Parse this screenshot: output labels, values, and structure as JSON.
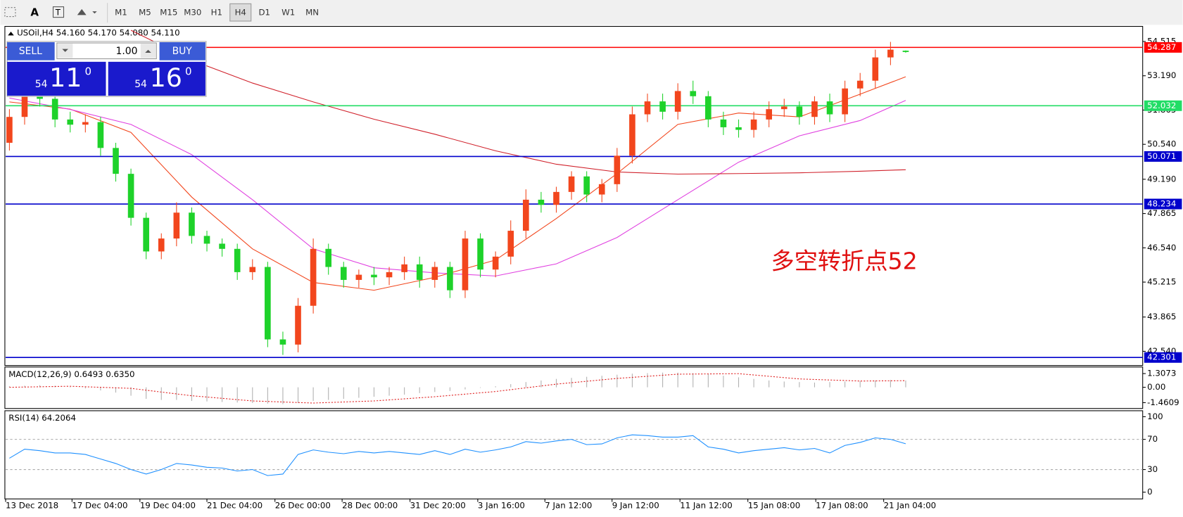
{
  "toolbar": {
    "timeframes": [
      "M1",
      "M5",
      "M15",
      "M30",
      "H1",
      "H4",
      "D1",
      "W1",
      "MN"
    ]
  },
  "trade_panel": {
    "sell": "SELL",
    "lot": "1.00",
    "buy": "BUY",
    "sell_price": {
      "prefix": "54",
      "big": "11",
      "sup": "0"
    },
    "buy_price": {
      "prefix": "54",
      "big": "16",
      "sup": "0"
    }
  },
  "chart_data": [
    {
      "type": "candlestick",
      "title": "USOil,H4 54.160 54.170 54.080 54.110",
      "annotation": "多空转折点52",
      "up_color": "#f2461d",
      "down_color": "#1ed22a",
      "open": [
        50.6,
        51.6,
        52.4,
        52.3,
        51.5,
        51.3,
        51.4,
        50.4,
        49.4,
        47.7,
        46.4,
        46.9,
        47.9,
        47.0,
        46.7,
        46.5,
        45.6,
        45.8,
        43.0,
        42.8,
        44.3,
        46.5,
        45.8,
        45.3,
        45.5,
        45.4,
        45.6,
        45.9,
        45.3,
        45.8,
        44.9,
        46.9,
        45.7,
        46.2,
        47.2,
        48.4,
        48.2,
        48.7,
        49.3,
        48.6,
        49.0,
        50.1,
        51.7,
        52.2,
        51.8,
        52.6,
        52.4,
        51.5,
        51.2,
        51.1,
        51.5,
        51.9,
        52.0,
        51.6,
        52.2,
        51.7,
        52.7,
        53.0,
        53.9,
        54.16
      ],
      "high": [
        51.9,
        52.7,
        52.8,
        52.5,
        51.8,
        51.7,
        51.6,
        50.6,
        49.6,
        47.9,
        47.1,
        48.3,
        48.1,
        47.2,
        46.9,
        46.7,
        46.1,
        46.0,
        43.3,
        44.6,
        46.9,
        46.7,
        46.0,
        45.7,
        45.8,
        45.8,
        46.2,
        46.2,
        46.0,
        46.0,
        47.2,
        47.1,
        46.4,
        47.6,
        48.8,
        48.7,
        48.9,
        49.5,
        49.5,
        49.2,
        50.4,
        52.0,
        52.5,
        52.5,
        52.9,
        53.0,
        52.6,
        51.8,
        51.5,
        51.8,
        52.2,
        52.3,
        52.2,
        52.4,
        52.5,
        53.0,
        53.3,
        54.2,
        54.5,
        54.17
      ],
      "low": [
        50.3,
        51.3,
        52.0,
        51.2,
        51.0,
        51.0,
        50.1,
        49.1,
        47.4,
        46.1,
        46.1,
        46.6,
        46.7,
        46.4,
        46.2,
        45.3,
        45.3,
        42.7,
        42.4,
        42.5,
        44.0,
        45.5,
        45.0,
        45.0,
        45.1,
        45.1,
        45.3,
        45.0,
        45.0,
        44.6,
        44.6,
        45.4,
        45.4,
        45.9,
        46.9,
        47.9,
        47.9,
        48.4,
        48.3,
        48.3,
        48.7,
        49.8,
        51.4,
        51.5,
        51.5,
        52.1,
        51.2,
        50.9,
        50.8,
        50.8,
        51.2,
        51.6,
        51.3,
        51.3,
        51.4,
        51.4,
        52.4,
        52.7,
        53.6,
        54.08
      ],
      "close": [
        51.6,
        52.4,
        52.3,
        51.5,
        51.3,
        51.4,
        50.4,
        49.4,
        47.7,
        46.4,
        46.9,
        47.9,
        47.0,
        46.7,
        46.5,
        45.6,
        45.8,
        43.0,
        42.8,
        44.3,
        46.5,
        45.8,
        45.3,
        45.5,
        45.4,
        45.6,
        45.9,
        45.3,
        45.8,
        44.9,
        46.9,
        45.7,
        46.2,
        47.2,
        48.4,
        48.2,
        48.7,
        49.3,
        48.6,
        49.0,
        50.1,
        51.7,
        52.2,
        51.8,
        52.6,
        52.4,
        51.5,
        51.2,
        51.1,
        51.5,
        51.9,
        52.0,
        51.6,
        52.2,
        51.7,
        52.7,
        53.0,
        53.9,
        54.2,
        54.11
      ],
      "series": [
        {
          "color": "#f2461d",
          "x": [
            0,
            4,
            8,
            12,
            16,
            20,
            24,
            28,
            32,
            36,
            40,
            44,
            48,
            52,
            56,
            59
          ],
          "values": [
            52.18,
            51.9,
            51.0,
            48.5,
            46.5,
            45.2,
            44.9,
            45.4,
            46.07,
            47.67,
            49.41,
            51.31,
            51.75,
            51.6,
            52.48,
            53.15
          ]
        },
        {
          "color": "#e040e0",
          "x": [
            0,
            4,
            8,
            12,
            16,
            20,
            24,
            28,
            32,
            36,
            40,
            44,
            48,
            52,
            56,
            59
          ],
          "values": [
            52.33,
            51.89,
            51.31,
            50.14,
            48.4,
            46.5,
            45.77,
            45.57,
            45.45,
            45.92,
            46.94,
            48.4,
            49.85,
            50.87,
            51.46,
            52.24
          ]
        },
        {
          "color": "#d0202a",
          "x": [
            0,
            4,
            8,
            12,
            16,
            20,
            24,
            28,
            32,
            36,
            40,
            44,
            48,
            52,
            56,
            59
          ],
          "values": [
            null,
            null,
            54.95,
            53.79,
            52.91,
            52.18,
            51.51,
            50.93,
            50.29,
            49.77,
            49.47,
            49.39,
            49.41,
            49.44,
            49.5,
            49.56
          ]
        }
      ],
      "levels": [
        {
          "value": 54.287,
          "color": "#ff0000"
        },
        {
          "value": 52.032,
          "color": "#22dd66"
        },
        {
          "value": 50.071,
          "color": "#0000cc"
        },
        {
          "value": 48.234,
          "color": "#0000cc"
        },
        {
          "value": 42.301,
          "color": "#0000cc"
        }
      ],
      "xlim": [
        -0.25,
        74.6
      ],
      "ylim": [
        42.02,
        55.07
      ],
      "yticks": [
        54.515,
        {
          "value": 53.19,
          "label": "53.190"
        },
        51.865,
        {
          "value": 50.54,
          "label": "50.540"
        },
        {
          "value": 49.19,
          "label": "49.190"
        },
        47.865,
        {
          "value": 46.54,
          "label": "46.540"
        },
        45.215,
        43.865,
        {
          "value": 42.54,
          "label": "42.540"
        }
      ],
      "xticks": [
        {
          "value": -0.25,
          "label": "13 Dec 2018"
        },
        {
          "value": 4.12,
          "label": "17 Dec 04:00"
        },
        {
          "value": 8.59,
          "label": "19 Dec 04:00"
        },
        {
          "value": 13.0,
          "label": "21 Dec 04:00"
        },
        {
          "value": 17.48,
          "label": "26 Dec 00:00"
        },
        {
          "value": 21.9,
          "label": "28 Dec 00:00"
        },
        {
          "value": 26.37,
          "label": "31 Dec 20:00"
        },
        {
          "value": 30.83,
          "label": "3 Jan 16:00"
        },
        {
          "value": 35.25,
          "label": "7 Jan 12:00"
        },
        {
          "value": 39.67,
          "label": "9 Jan 12:00"
        },
        {
          "value": 44.14,
          "label": "11 Jan 12:00"
        },
        {
          "value": 48.61,
          "label": "15 Jan 08:00"
        },
        {
          "value": 53.08,
          "label": "17 Jan 08:00"
        },
        {
          "value": 57.55,
          "label": "21 Jan 04:00"
        }
      ]
    },
    {
      "type": "macd",
      "title": "MACD(12,26,9) 0.6493 0.6350",
      "color": "#b0b0b0",
      "signal_color": "#e02020",
      "values": [
        0.1,
        0.15,
        0.2,
        0.15,
        0.05,
        -0.1,
        -0.3,
        -0.5,
        -0.8,
        -1.1,
        -1.2,
        -1.2,
        -1.3,
        -1.35,
        -1.4,
        -1.45,
        -1.5,
        -1.55,
        -1.6,
        -1.5,
        -1.3,
        -1.2,
        -1.1,
        -1.0,
        -0.9,
        -0.8,
        -0.7,
        -0.55,
        -0.45,
        -0.35,
        -0.2,
        -0.05,
        0.1,
        0.3,
        0.5,
        0.65,
        0.8,
        0.9,
        1.0,
        1.1,
        1.2,
        1.3,
        1.35,
        1.4,
        1.4,
        1.35,
        1.25,
        1.1,
        0.95,
        0.8,
        0.65,
        0.55,
        0.5,
        0.45,
        0.5,
        0.55,
        0.6,
        0.65,
        0.7,
        0.6493
      ],
      "signal": {
        "x": [
          0,
          4,
          8,
          12,
          16,
          20,
          24,
          28,
          32,
          36,
          40,
          44,
          48,
          52,
          56,
          59
        ],
        "values": [
          0.0,
          0.1,
          -0.1,
          -0.8,
          -1.3,
          -1.5,
          -1.3,
          -0.9,
          -0.4,
          0.3,
          0.85,
          1.25,
          1.3,
          0.8,
          0.6,
          0.635
        ]
      },
      "ylim": [
        -1.945,
        1.86
      ],
      "yticks": [
        1.3073,
        {
          "value": 0,
          "label": "0.00"
        },
        -1.4609
      ]
    },
    {
      "type": "line",
      "title": "RSI(14) 64.2064",
      "color": "#1e90ff",
      "values": [
        45,
        57,
        55,
        52,
        52,
        50,
        44,
        38,
        30,
        24,
        30,
        38,
        36,
        33,
        32,
        28,
        30,
        22,
        24,
        50,
        56,
        53,
        51,
        54,
        52,
        54,
        52,
        50,
        55,
        50,
        57,
        53,
        56,
        60,
        67,
        65,
        68,
        70,
        63,
        64,
        72,
        76,
        75,
        73,
        73,
        75,
        60,
        57,
        52,
        55,
        57,
        59,
        56,
        58,
        52,
        62,
        66,
        72,
        70,
        64.2064
      ],
      "levels": [
        70,
        30
      ],
      "ylim": [
        -7.9,
        106.9
      ],
      "yticks": [
        100,
        70,
        30,
        0
      ]
    }
  ]
}
